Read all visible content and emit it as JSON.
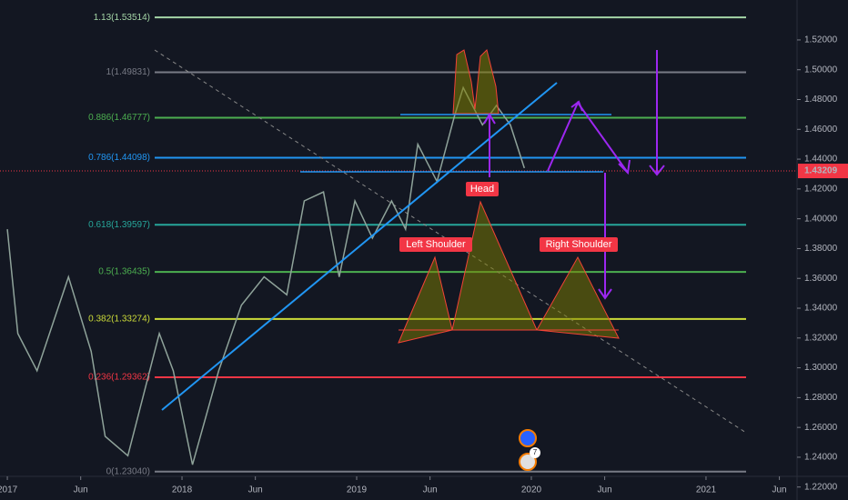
{
  "chart_data": {
    "type": "line",
    "x": [
      2017.0,
      2017.06,
      2017.17,
      2017.35,
      2017.48,
      2017.56,
      2017.69,
      2017.87,
      2017.95,
      2018.06,
      2018.21,
      2018.34,
      2018.47,
      2018.6,
      2018.7,
      2018.81,
      2018.9,
      2018.99,
      2019.09,
      2019.2,
      2019.28,
      2019.35,
      2019.46,
      2019.56,
      2019.61,
      2019.72,
      2019.8,
      2019.88,
      2019.96
    ],
    "series": [
      {
        "color": "#8fa39a",
        "values": [
          1.393,
          1.323,
          1.298,
          1.361,
          1.311,
          1.254,
          1.241,
          1.323,
          1.298,
          1.235,
          1.298,
          1.342,
          1.361,
          1.349,
          1.412,
          1.418,
          1.361,
          1.412,
          1.387,
          1.412,
          1.393,
          1.45,
          1.425,
          1.469,
          1.488,
          1.463,
          1.476,
          1.463,
          1.434
        ]
      }
    ],
    "xlim": [
      2016.958,
      2021.516
    ],
    "xticks": [
      2017,
      {
        "value": 2017.42,
        "label": "Jun"
      },
      2018,
      {
        "value": 2018.42,
        "label": "Jun"
      },
      2019,
      {
        "value": 2019.42,
        "label": "Jun"
      },
      2020,
      {
        "value": 2020.42,
        "label": "Jun"
      },
      2021,
      {
        "value": 2021.42,
        "label": "Jun"
      }
    ],
    "ylim": [
      1.2113,
      1.5468
    ],
    "yticks": [
      {
        "value": 1.52,
        "label": "1.52000"
      },
      {
        "value": 1.5,
        "label": "1.50000"
      },
      {
        "value": 1.48,
        "label": "1.48000"
      },
      {
        "value": 1.46,
        "label": "1.46000"
      },
      {
        "value": 1.44,
        "label": "1.44000"
      },
      {
        "value": 1.42,
        "label": "1.42000"
      },
      {
        "value": 1.4,
        "label": "1.40000"
      },
      {
        "value": 1.38,
        "label": "1.38000"
      },
      {
        "value": 1.36,
        "label": "1.36000"
      },
      {
        "value": 1.34,
        "label": "1.34000"
      },
      {
        "value": 1.32,
        "label": "1.32000"
      },
      {
        "value": 1.3,
        "label": "1.30000"
      },
      {
        "value": 1.28,
        "label": "1.28000"
      },
      {
        "value": 1.26,
        "label": "1.26000"
      },
      {
        "value": 1.24,
        "label": "1.24000"
      },
      {
        "value": 1.22,
        "label": "1.22000"
      }
    ],
    "last_price": 1.43209,
    "levels": [
      {
        "label": "1.13(1.53514)",
        "value": 1.53514,
        "color": "#a5d6a7"
      },
      {
        "label": "1(1.49831)",
        "value": 1.49831,
        "color": "#787b86"
      },
      {
        "label": "0.886(1.46777)",
        "value": 1.46777,
        "color": "#4caf50"
      },
      {
        "label": "0.786(1.44098)",
        "value": 1.44098,
        "color": "#2196f3"
      },
      {
        "label": "0.618(1.39597)",
        "value": 1.39597,
        "color": "#26a69a"
      },
      {
        "label": "0.5(1.36435)",
        "value": 1.36435,
        "color": "#4caf50"
      },
      {
        "label": "0.382(1.33274)",
        "value": 1.33274,
        "color": "#cddc39"
      },
      {
        "label": "0.236(1.29362)",
        "value": 1.29362,
        "color": "#f23645"
      },
      {
        "label": "0(1.23040)",
        "value": 1.2304,
        "color": "#787b86"
      }
    ],
    "annotations": [
      "Head",
      "Left Shoulder",
      "Right Shoulder"
    ],
    "event_badge": "7"
  }
}
